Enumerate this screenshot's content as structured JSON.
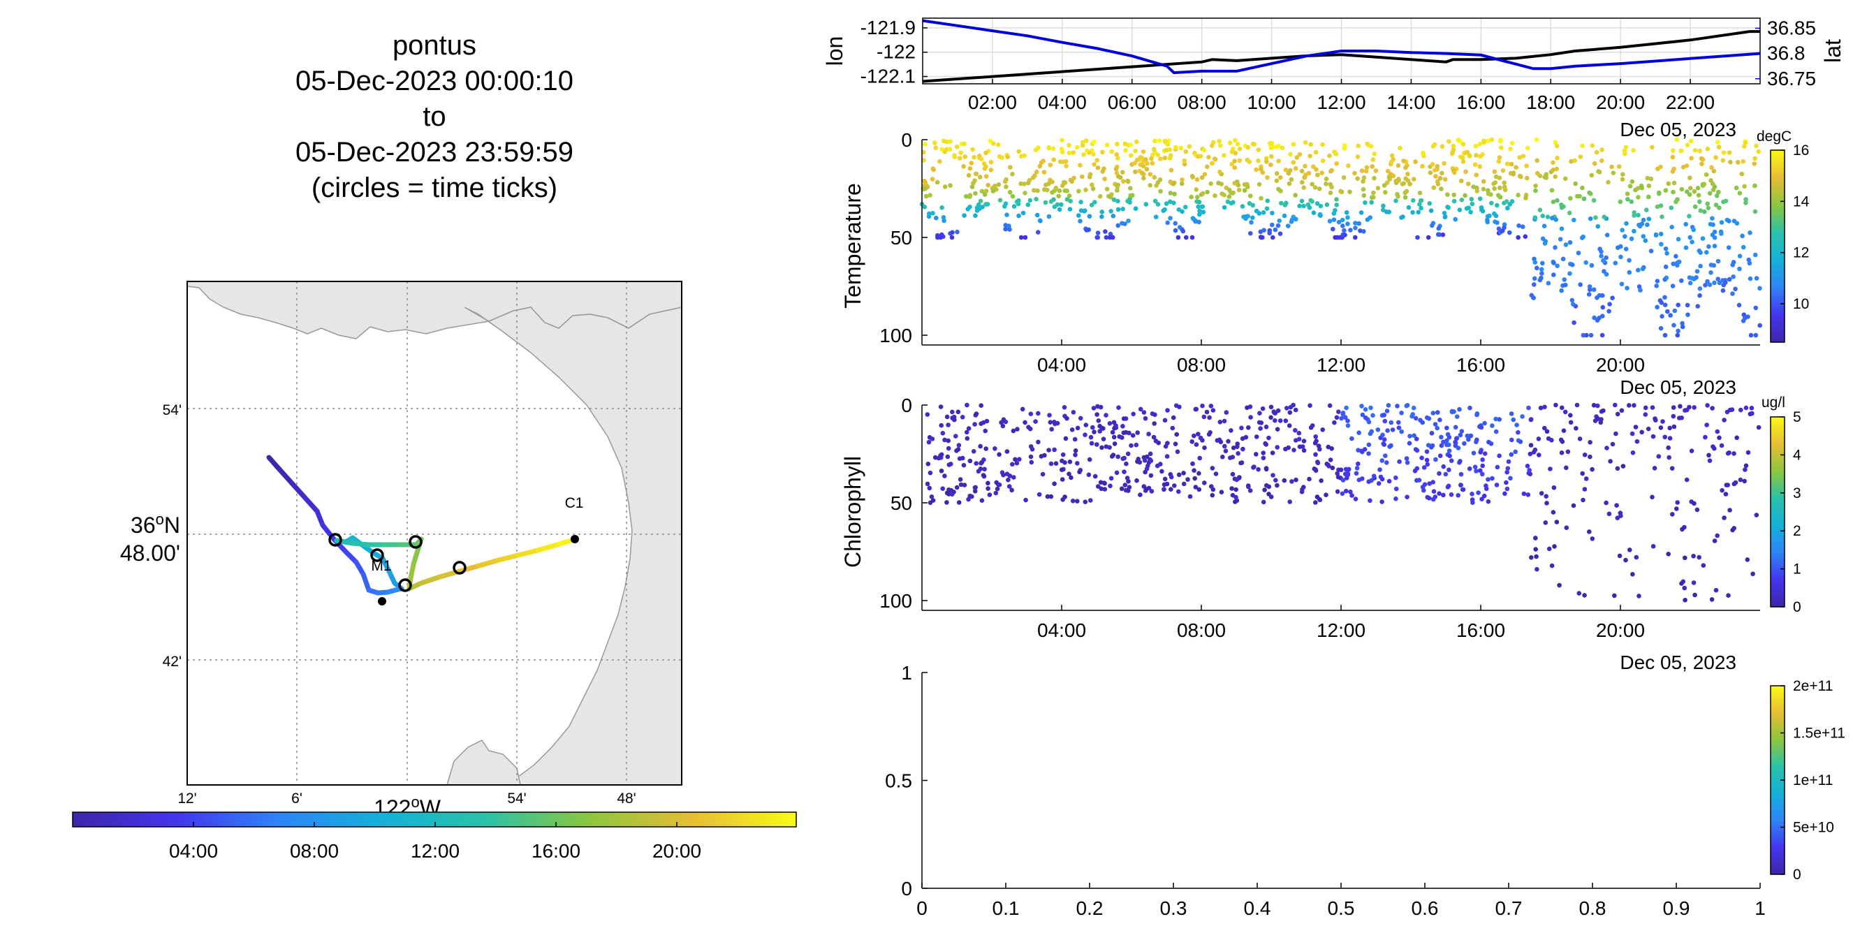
{
  "title": {
    "lines": [
      "pontus",
      "05-Dec-2023 00:00:10",
      "to",
      "05-Dec-2023 23:59:59",
      "(circles = time ticks)"
    ]
  },
  "colors": {
    "lon_line": "#000000",
    "lat_line": "#0000dd",
    "map_land": "#e6e6e6",
    "colormap": [
      "#3e26a8",
      "#4435ef",
      "#2e85f8",
      "#13b1d7",
      "#2bc2a8",
      "#8cc63f",
      "#e7bd34",
      "#f9fb15"
    ]
  },
  "map": {
    "y_ticks": [
      "54'",
      "36ºN 48.00'",
      "42'"
    ],
    "lat_label": [
      "36",
      "o",
      "N"
    ],
    "lat_minutes": "48.00'",
    "x_ticks": [
      "12'",
      "6'",
      "54'",
      "48'"
    ],
    "lon_label": [
      "122",
      "o",
      "W"
    ],
    "station_c1": "C1",
    "station_m1": "M1",
    "time_colorbar_ticks": [
      "04:00",
      "08:00",
      "12:00",
      "16:00",
      "20:00"
    ]
  },
  "chart_data": [
    {
      "type": "line",
      "panel": "position",
      "x_ticks": [
        "02:00",
        "04:00",
        "06:00",
        "08:00",
        "10:00",
        "12:00",
        "14:00",
        "16:00",
        "18:00",
        "20:00",
        "22:00"
      ],
      "date_label": "Dec 05, 2023",
      "xlim": [
        0,
        24
      ],
      "ylabel_left": "lon",
      "ylabel_right": "lat",
      "y_left_ticks": [
        "-121.9",
        "-122",
        "-122.1"
      ],
      "y_right_ticks": [
        "36.85",
        "36.8",
        "36.75"
      ],
      "ylim_left": [
        -122.13,
        -121.86
      ],
      "ylim_right": [
        36.74,
        36.87
      ],
      "grid": true,
      "series": [
        {
          "name": "lon",
          "x": [
            0,
            2,
            4,
            6,
            8,
            8.3,
            9,
            10,
            11,
            12,
            13,
            14,
            15,
            15.2,
            16,
            17,
            18,
            18.7,
            20,
            22,
            23.7,
            24
          ],
          "y": [
            -122.12,
            -122.1,
            -122.08,
            -122.06,
            -122.04,
            -122.03,
            -122.035,
            -122.025,
            -122.015,
            -122.01,
            -122.02,
            -122.03,
            -122.04,
            -122.03,
            -122.03,
            -122.025,
            -122.01,
            -121.995,
            -121.98,
            -121.95,
            -121.915,
            -121.915
          ]
        },
        {
          "name": "lat",
          "x": [
            0,
            1,
            2,
            3,
            4,
            5,
            6,
            7,
            7.2,
            8,
            9,
            10,
            11,
            12,
            13,
            14,
            15,
            16,
            17.5,
            18,
            18.7,
            20,
            22,
            24
          ],
          "y": [
            36.865,
            36.855,
            36.845,
            36.835,
            36.822,
            36.81,
            36.795,
            36.775,
            36.762,
            36.765,
            36.765,
            36.78,
            36.795,
            36.805,
            36.805,
            36.802,
            36.8,
            36.797,
            36.77,
            36.77,
            36.775,
            36.78,
            36.79,
            36.8
          ]
        }
      ]
    },
    {
      "type": "scatter",
      "panel": "temperature",
      "ylabel": "Temperature",
      "x_ticks": [
        "04:00",
        "08:00",
        "12:00",
        "16:00",
        "20:00"
      ],
      "y_ticks": [
        "0",
        "50",
        "100"
      ],
      "date_label": "Dec 05, 2023",
      "xlim": [
        0,
        24
      ],
      "ylim": [
        0,
        105
      ],
      "y_reversed": true,
      "colorbar_label": "degC",
      "colorbar_ticks": [
        "16",
        "14",
        "12",
        "10"
      ],
      "clim": [
        8.5,
        16
      ],
      "profiles": [
        {
          "t_start": 0,
          "t_end": 17.4,
          "max_depth": 50,
          "surface": 15.8,
          "bottom": 13.0,
          "break_depth": 30,
          "deep": 9.5,
          "n_per_hour": 50
        },
        {
          "t_start": 17.4,
          "t_end": 24,
          "max_depth": 100,
          "surface": 15.8,
          "bottom": 11.0,
          "break_depth": 40,
          "deep": 10.0,
          "n_per_hour": 60
        }
      ]
    },
    {
      "type": "scatter",
      "panel": "chlorophyll",
      "ylabel": "Chlorophyll",
      "x_ticks": [
        "04:00",
        "08:00",
        "12:00",
        "16:00",
        "20:00"
      ],
      "y_ticks": [
        "0",
        "50",
        "100"
      ],
      "date_label": "Dec 05, 2023",
      "xlim": [
        0,
        24
      ],
      "ylim": [
        0,
        105
      ],
      "y_reversed": true,
      "colorbar_label": "ug/l",
      "colorbar_ticks": [
        "5",
        "4",
        "3",
        "2",
        "1",
        "0"
      ],
      "clim": [
        0,
        5
      ],
      "profiles": [
        {
          "t_start": 0,
          "t_end": 12,
          "max_depth": 50,
          "value": 0.3,
          "n_per_hour": 40
        },
        {
          "t_start": 12,
          "t_end": 17.4,
          "max_depth": 50,
          "value": 1.1,
          "n_per_hour": 45
        },
        {
          "t_start": 17.4,
          "t_end": 24,
          "max_depth": 100,
          "value": 0.3,
          "n_per_hour": 30
        }
      ]
    },
    {
      "type": "scatter",
      "panel": "empty",
      "x_ticks": [
        "0",
        "0.1",
        "0.2",
        "0.3",
        "0.4",
        "0.5",
        "0.6",
        "0.7",
        "0.8",
        "0.9",
        "1"
      ],
      "y_ticks": [
        "1",
        "0.5",
        "0"
      ],
      "xlim": [
        0,
        1
      ],
      "ylim": [
        0,
        1
      ],
      "colorbar_ticks": [
        "2e+11",
        "1.5e+11",
        "1e+11",
        "5e+10",
        "0"
      ],
      "clim": [
        0,
        200000000000.0
      ]
    }
  ]
}
